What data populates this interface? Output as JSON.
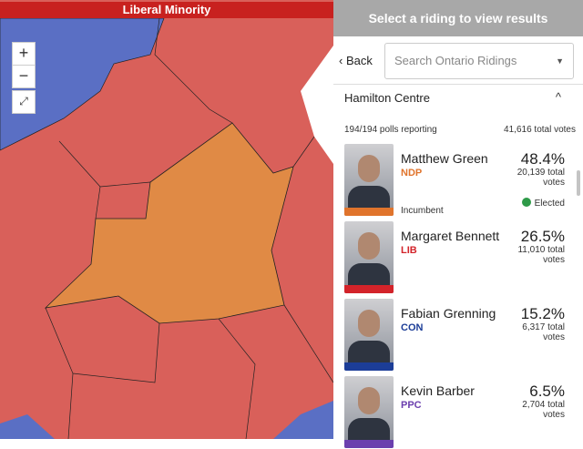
{
  "map": {
    "banner": "Liberal Minority"
  },
  "panel": {
    "header": "Select a riding to view results",
    "back": "Back",
    "search_placeholder": "Search Ontario Ridings",
    "riding": "Hamilton Centre",
    "polls": "194/194 polls reporting",
    "total_votes": "41,616 total votes",
    "candidates": [
      {
        "name": "Matthew Green",
        "party": "NDP",
        "color": "#e0742c",
        "pct": "48.4%",
        "votes": "20,139 total votes",
        "incumbent": "Incumbent",
        "status": "Elected"
      },
      {
        "name": "Margaret Bennett",
        "party": "LIB",
        "color": "#d3232a",
        "pct": "26.5%",
        "votes": "11,010 total votes"
      },
      {
        "name": "Fabian Grenning",
        "party": "CON",
        "color": "#1c3d97",
        "pct": "15.2%",
        "votes": "6,317 total votes"
      },
      {
        "name": "Kevin Barber",
        "party": "PPC",
        "color": "#6b3fae",
        "pct": "6.5%",
        "votes": "2,704 total votes"
      }
    ]
  }
}
